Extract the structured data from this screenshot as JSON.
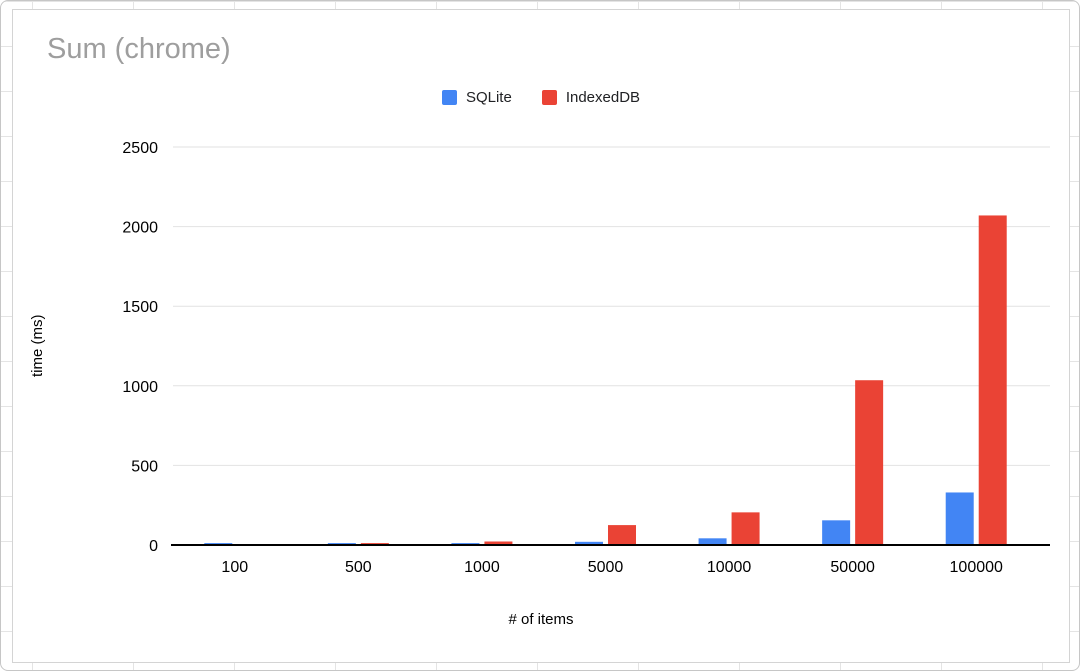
{
  "page": {
    "background_color": "#ffffff",
    "sheet_gridline_color": "#e4e4e4",
    "panel_border_color": "#d4d4d4"
  },
  "chart_data": {
    "type": "bar",
    "title": "Sum (chrome)",
    "title_color": "#9e9e9e",
    "xlabel": "# of items",
    "ylabel": "time (ms)",
    "categories": [
      "100",
      "500",
      "1000",
      "5000",
      "10000",
      "50000",
      "100000"
    ],
    "series": [
      {
        "name": "SQLite",
        "color": "#4285f4",
        "values": [
          12,
          12,
          12,
          20,
          42,
          155,
          330
        ]
      },
      {
        "name": "IndexedDB",
        "color": "#ea4335",
        "values": [
          2,
          12,
          22,
          125,
          205,
          1035,
          2070
        ]
      }
    ],
    "ylim": [
      0,
      2500
    ],
    "yticks": [
      0,
      500,
      1000,
      1500,
      2000,
      2500
    ],
    "grid": true,
    "gridline_color": "#e2e2e2",
    "axis_line_color": "#000000",
    "tick_label_color": "#000000",
    "legend_position": "top"
  }
}
